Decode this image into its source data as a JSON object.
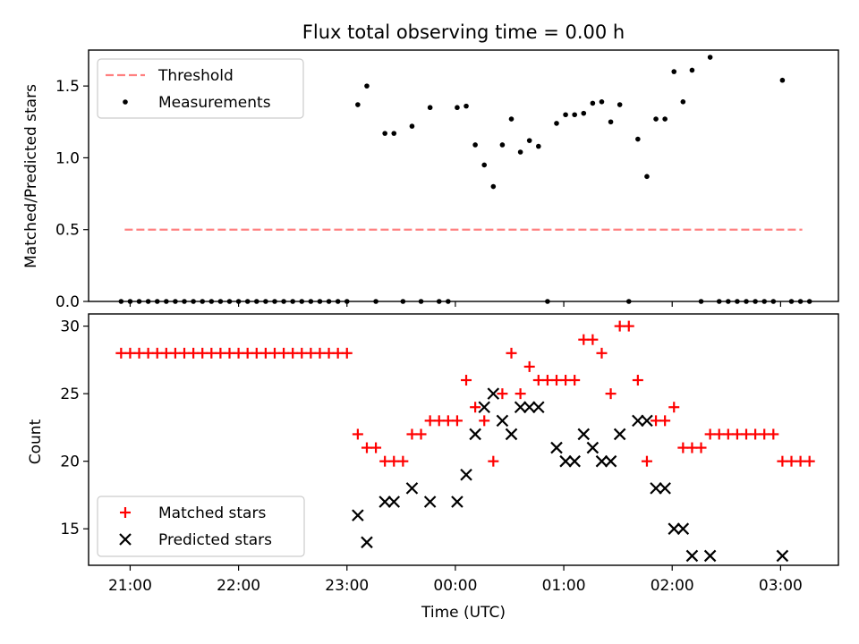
{
  "figure": {
    "title": "Flux total observing time = 0.00 h",
    "xlabel": "Time (UTC)",
    "xticks": [
      "21:00",
      "22:00",
      "23:00",
      "00:00",
      "01:00",
      "02:00",
      "03:00"
    ]
  },
  "colors": {
    "threshold": "#ff8080",
    "matched": "#ff0000",
    "predicted": "#000000",
    "measurements": "#000000"
  },
  "chart_data": [
    {
      "type": "scatter",
      "ylabel": "Matched/Predicted stars",
      "x_unit": "minutes after 21:00 UTC",
      "xlim": [
        -23,
        392
      ],
      "ylim": [
        0,
        1.75
      ],
      "yticks": [
        "0.0",
        "0.5",
        "1.0",
        "1.5"
      ],
      "legend": {
        "position": "top-left"
      },
      "threshold": {
        "name": "Threshold",
        "y": 0.5,
        "x": [
          -3,
          372
        ]
      },
      "series": [
        {
          "name": "Measurements",
          "points": [
            [
              -5,
              0
            ],
            [
              0,
              0
            ],
            [
              5,
              0
            ],
            [
              10,
              0
            ],
            [
              15,
              0
            ],
            [
              20,
              0
            ],
            [
              25,
              0
            ],
            [
              30,
              0
            ],
            [
              35,
              0
            ],
            [
              40,
              0
            ],
            [
              45,
              0
            ],
            [
              50,
              0
            ],
            [
              55,
              0
            ],
            [
              60,
              0
            ],
            [
              65,
              0
            ],
            [
              70,
              0
            ],
            [
              75,
              0
            ],
            [
              80,
              0
            ],
            [
              85,
              0
            ],
            [
              90,
              0
            ],
            [
              95,
              0
            ],
            [
              100,
              0
            ],
            [
              105,
              0
            ],
            [
              110,
              0
            ],
            [
              115,
              0
            ],
            [
              120,
              0
            ],
            [
              126,
              1.37
            ],
            [
              131,
              1.5
            ],
            [
              136,
              0
            ],
            [
              141,
              1.17
            ],
            [
              146,
              1.17
            ],
            [
              151,
              0
            ],
            [
              156,
              1.22
            ],
            [
              161,
              0
            ],
            [
              166,
              1.35
            ],
            [
              171,
              0
            ],
            [
              176,
              0
            ],
            [
              181,
              1.35
            ],
            [
              186,
              1.36
            ],
            [
              191,
              1.09
            ],
            [
              196,
              0.95
            ],
            [
              201,
              0.8
            ],
            [
              206,
              1.09
            ],
            [
              211,
              1.27
            ],
            [
              216,
              1.04
            ],
            [
              221,
              1.12
            ],
            [
              226,
              1.08
            ],
            [
              231,
              0
            ],
            [
              236,
              1.24
            ],
            [
              241,
              1.3
            ],
            [
              246,
              1.3
            ],
            [
              251,
              1.31
            ],
            [
              256,
              1.38
            ],
            [
              261,
              1.39
            ],
            [
              266,
              1.25
            ],
            [
              271,
              1.37
            ],
            [
              276,
              0
            ],
            [
              281,
              1.13
            ],
            [
              286,
              0.87
            ],
            [
              291,
              1.27
            ],
            [
              296,
              1.27
            ],
            [
              301,
              1.6
            ],
            [
              306,
              1.39
            ],
            [
              311,
              1.61
            ],
            [
              316,
              0
            ],
            [
              321,
              1.7
            ],
            [
              326,
              0
            ],
            [
              331,
              0
            ],
            [
              336,
              0
            ],
            [
              341,
              0
            ],
            [
              346,
              0
            ],
            [
              351,
              0
            ],
            [
              356,
              0
            ],
            [
              361,
              1.54
            ],
            [
              366,
              0
            ],
            [
              371,
              0
            ],
            [
              376,
              0
            ]
          ]
        }
      ]
    },
    {
      "type": "scatter",
      "ylabel": "Count",
      "x_unit": "minutes after 21:00 UTC",
      "xlim": [
        -23,
        392
      ],
      "ylim": [
        12.3,
        30.9
      ],
      "yticks": [
        "15",
        "20",
        "25",
        "30"
      ],
      "legend": {
        "position": "bottom-left"
      },
      "series": [
        {
          "name": "Matched stars",
          "marker": "plus",
          "points": [
            [
              -5,
              28
            ],
            [
              0,
              28
            ],
            [
              5,
              28
            ],
            [
              10,
              28
            ],
            [
              15,
              28
            ],
            [
              20,
              28
            ],
            [
              25,
              28
            ],
            [
              30,
              28
            ],
            [
              35,
              28
            ],
            [
              40,
              28
            ],
            [
              45,
              28
            ],
            [
              50,
              28
            ],
            [
              55,
              28
            ],
            [
              60,
              28
            ],
            [
              65,
              28
            ],
            [
              70,
              28
            ],
            [
              75,
              28
            ],
            [
              80,
              28
            ],
            [
              85,
              28
            ],
            [
              90,
              28
            ],
            [
              95,
              28
            ],
            [
              100,
              28
            ],
            [
              105,
              28
            ],
            [
              110,
              28
            ],
            [
              115,
              28
            ],
            [
              120,
              28
            ],
            [
              126,
              22
            ],
            [
              131,
              21
            ],
            [
              136,
              21
            ],
            [
              141,
              20
            ],
            [
              146,
              20
            ],
            [
              151,
              20
            ],
            [
              156,
              22
            ],
            [
              161,
              22
            ],
            [
              166,
              23
            ],
            [
              171,
              23
            ],
            [
              176,
              23
            ],
            [
              181,
              23
            ],
            [
              186,
              26
            ],
            [
              191,
              24
            ],
            [
              196,
              23
            ],
            [
              201,
              20
            ],
            [
              206,
              25
            ],
            [
              211,
              28
            ],
            [
              216,
              25
            ],
            [
              221,
              27
            ],
            [
              226,
              26
            ],
            [
              231,
              26
            ],
            [
              236,
              26
            ],
            [
              241,
              26
            ],
            [
              246,
              26
            ],
            [
              251,
              29
            ],
            [
              256,
              29
            ],
            [
              261,
              28
            ],
            [
              266,
              25
            ],
            [
              271,
              30
            ],
            [
              276,
              30
            ],
            [
              281,
              26
            ],
            [
              286,
              20
            ],
            [
              291,
              23
            ],
            [
              296,
              23
            ],
            [
              301,
              24
            ],
            [
              306,
              21
            ],
            [
              311,
              21
            ],
            [
              316,
              21
            ],
            [
              321,
              22
            ],
            [
              326,
              22
            ],
            [
              331,
              22
            ],
            [
              336,
              22
            ],
            [
              341,
              22
            ],
            [
              346,
              22
            ],
            [
              351,
              22
            ],
            [
              356,
              22
            ],
            [
              361,
              20
            ],
            [
              366,
              20
            ],
            [
              371,
              20
            ],
            [
              376,
              20
            ]
          ]
        },
        {
          "name": "Predicted stars",
          "marker": "x",
          "points": [
            [
              126,
              16
            ],
            [
              131,
              14
            ],
            [
              141,
              17
            ],
            [
              146,
              17
            ],
            [
              156,
              18
            ],
            [
              166,
              17
            ],
            [
              181,
              17
            ],
            [
              186,
              19
            ],
            [
              191,
              22
            ],
            [
              196,
              24
            ],
            [
              201,
              25
            ],
            [
              206,
              23
            ],
            [
              211,
              22
            ],
            [
              216,
              24
            ],
            [
              221,
              24
            ],
            [
              226,
              24
            ],
            [
              236,
              21
            ],
            [
              241,
              20
            ],
            [
              246,
              20
            ],
            [
              251,
              22
            ],
            [
              256,
              21
            ],
            [
              261,
              20
            ],
            [
              266,
              20
            ],
            [
              271,
              22
            ],
            [
              281,
              23
            ],
            [
              286,
              23
            ],
            [
              291,
              18
            ],
            [
              296,
              18
            ],
            [
              301,
              15
            ],
            [
              306,
              15
            ],
            [
              311,
              13
            ],
            [
              321,
              13
            ],
            [
              361,
              13
            ]
          ]
        }
      ]
    }
  ]
}
